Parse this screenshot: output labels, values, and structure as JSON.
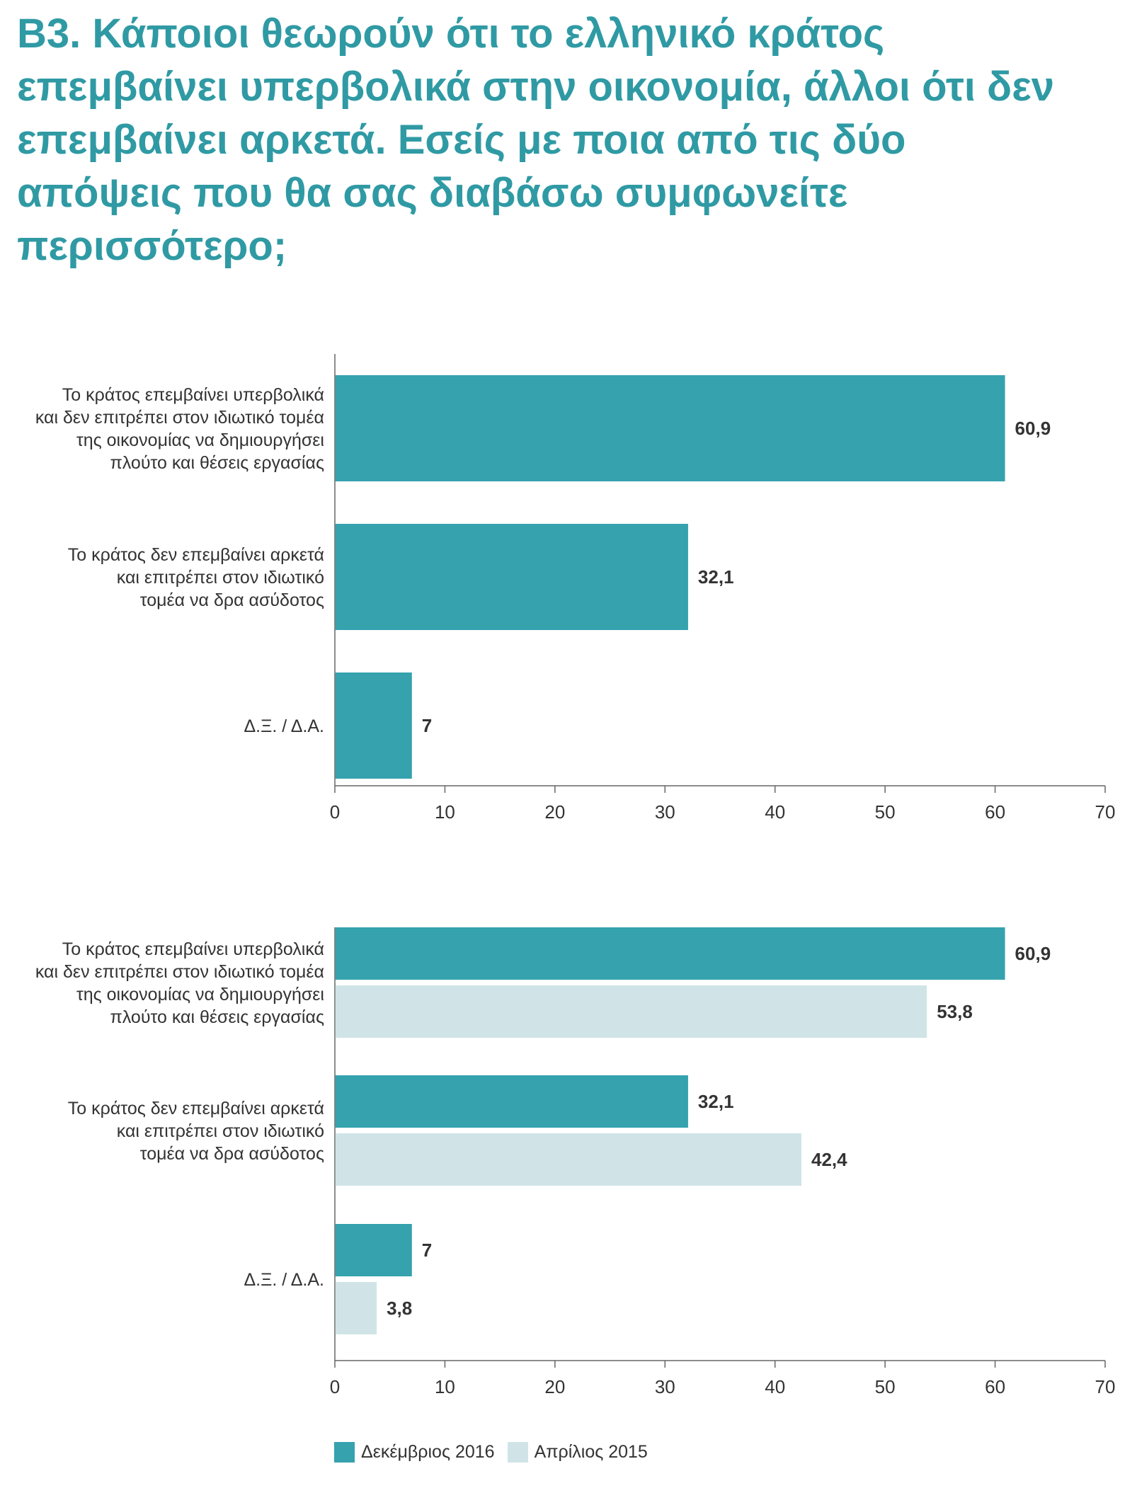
{
  "title": "B3. Κάποιοι θεωρούν ότι το ελληνικό κράτος επεμβαίνει υπερβολικά στην οικονομία, άλλοι ότι δεν επεμβαίνει αρκετά. Εσείς με ποια από τις δύο απόψεις που θα σας διαβάσω συμφωνείτε περισσότερο;",
  "colors": {
    "series_2016": "#35a2ae",
    "series_2015": "#d0e4e7",
    "title": "#2f9aa4"
  },
  "chart_data": [
    {
      "type": "bar",
      "orientation": "horizontal",
      "categories": [
        [
          "Το κράτος επεμβαίνει υπερβολικά",
          "και δεν επιτρέπει στον ιδιωτικό τομέα",
          "της οικονομίας να δημιουργήσει",
          "πλούτο και θέσεις εργασίας"
        ],
        [
          "Το κράτος δεν επεμβαίνει αρκετά",
          "και επιτρέπει στον ιδιωτικό",
          "τομέα να δρα ασύδοτος"
        ],
        [
          "Δ.Ξ. / Δ.Α."
        ]
      ],
      "series": [
        {
          "name": "Δεκέμβριος 2016",
          "values": [
            60.9,
            32.1,
            7
          ],
          "labels": [
            "60,9",
            "32,1",
            "7"
          ],
          "color": "#35a2ae"
        }
      ],
      "xlim": [
        0,
        70
      ],
      "xticks": [
        0,
        10,
        20,
        30,
        40,
        50,
        60,
        70
      ],
      "grid": false
    },
    {
      "type": "bar",
      "orientation": "horizontal",
      "categories": [
        [
          "Το κράτος επεμβαίνει υπερβολικά",
          "και δεν επιτρέπει στον ιδιωτικό τομέα",
          "της οικονομίας να δημιουργήσει",
          "πλούτο και θέσεις εργασίας"
        ],
        [
          "Το κράτος δεν επεμβαίνει αρκετά",
          "και επιτρέπει στον ιδιωτικό",
          "τομέα να δρα ασύδοτος"
        ],
        [
          "Δ.Ξ. / Δ.Α."
        ]
      ],
      "series": [
        {
          "name": "Δεκέμβριος 2016",
          "values": [
            60.9,
            32.1,
            7
          ],
          "labels": [
            "60,9",
            "32,1",
            "7"
          ],
          "color": "#35a2ae"
        },
        {
          "name": "Απρίλιος 2015",
          "values": [
            53.8,
            42.4,
            3.8
          ],
          "labels": [
            "53,8",
            "42,4",
            "3,8"
          ],
          "color": "#d0e4e7"
        }
      ],
      "xlim": [
        0,
        70
      ],
      "xticks": [
        0,
        10,
        20,
        30,
        40,
        50,
        60,
        70
      ],
      "grid": false,
      "legend": "bottom-left"
    }
  ],
  "legend": [
    {
      "label": "Δεκέμβριος 2016",
      "color": "#35a2ae"
    },
    {
      "label": "Απρίλιος 2015",
      "color": "#d0e4e7"
    }
  ]
}
